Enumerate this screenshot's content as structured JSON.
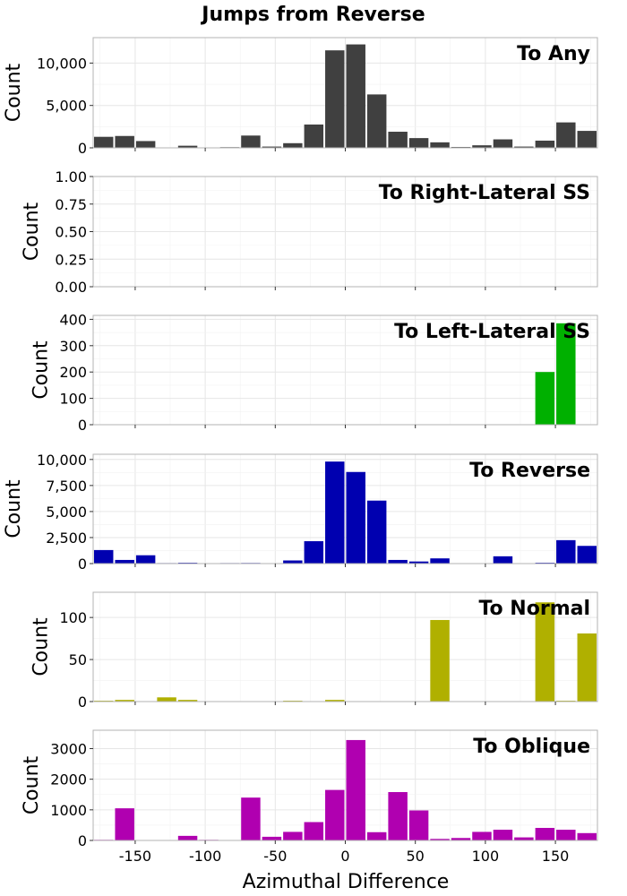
{
  "title": "Jumps from Reverse",
  "chart_data": {
    "type": "bar",
    "subtype": "histogram",
    "title": "Jumps from Reverse",
    "xlabel": "Azimuthal Difference",
    "xlim": [
      -180,
      180
    ],
    "xticks": [
      -150,
      -100,
      -50,
      0,
      50,
      100,
      150
    ],
    "xtick_labels": [
      "-150",
      "-100",
      "-50",
      "0",
      "50",
      "100",
      "150"
    ],
    "bin_centers": [
      -172.5,
      -157.5,
      -142.5,
      -127.5,
      -112.5,
      -97.5,
      -82.5,
      -67.5,
      -52.5,
      -37.5,
      -22.5,
      -7.5,
      7.5,
      22.5,
      37.5,
      52.5,
      67.5,
      82.5,
      97.5,
      112.5,
      127.5,
      142.5,
      157.5,
      172.5
    ],
    "grid": true,
    "panels": [
      {
        "name": "To Any",
        "ylabel": "Count",
        "color": "#404040",
        "ylim": [
          0,
          13000
        ],
        "yticks": [
          0,
          5000,
          10000
        ],
        "ytick_labels": [
          "0",
          "5,000",
          "10,000"
        ],
        "values": [
          1300,
          1400,
          800,
          50,
          250,
          30,
          80,
          1450,
          150,
          550,
          2750,
          11500,
          12200,
          6300,
          1900,
          1150,
          650,
          100,
          300,
          1000,
          150,
          850,
          3000,
          2000
        ]
      },
      {
        "name": "To Right-Lateral SS",
        "ylabel": "Count",
        "color": "#00b000",
        "ylim": [
          0,
          1
        ],
        "yticks": [
          0,
          0.25,
          0.5,
          0.75,
          1
        ],
        "ytick_labels": [
          "0.00",
          "0.25",
          "0.50",
          "0.75",
          "1.00"
        ],
        "values": [
          0,
          0,
          0,
          0,
          0,
          0,
          0,
          0,
          0,
          0,
          0,
          0,
          0,
          0,
          0,
          0,
          0,
          0,
          0,
          0,
          0,
          0,
          0,
          0
        ]
      },
      {
        "name": "To Left-Lateral SS",
        "ylabel": "Count",
        "color": "#00b000",
        "ylim": [
          0,
          415
        ],
        "yticks": [
          0,
          100,
          200,
          300,
          400
        ],
        "ytick_labels": [
          "0",
          "100",
          "200",
          "300",
          "400"
        ],
        "values": [
          0,
          0,
          0,
          0,
          0,
          0,
          0,
          0,
          0,
          0,
          0,
          0,
          0,
          0,
          0,
          0,
          0,
          0,
          0,
          0,
          0,
          200,
          385,
          0
        ]
      },
      {
        "name": "To Reverse",
        "ylabel": "Count",
        "color": "#0000b0",
        "ylim": [
          0,
          10500
        ],
        "yticks": [
          0,
          2500,
          5000,
          7500,
          10000
        ],
        "ytick_labels": [
          "0",
          "2,500",
          "5,000",
          "7,500",
          "10,000"
        ],
        "values": [
          1300,
          350,
          800,
          50,
          80,
          30,
          50,
          60,
          20,
          300,
          2150,
          9800,
          8800,
          6050,
          350,
          200,
          500,
          40,
          20,
          700,
          30,
          80,
          2250,
          1700
        ]
      },
      {
        "name": "To Normal",
        "ylabel": "Count",
        "color": "#b0b000",
        "ylim": [
          0,
          130
        ],
        "yticks": [
          0,
          50,
          100
        ],
        "ytick_labels": [
          "0",
          "50",
          "100"
        ],
        "values": [
          1,
          2,
          0,
          5,
          2,
          0,
          0,
          0,
          0,
          1,
          0,
          2,
          0,
          0,
          0,
          0,
          97,
          0,
          0,
          0,
          0,
          118,
          1,
          81
        ]
      },
      {
        "name": "To Oblique",
        "ylabel": "Count",
        "color": "#b000b0",
        "ylim": [
          0,
          3600
        ],
        "yticks": [
          0,
          1000,
          2000,
          3000
        ],
        "ytick_labels": [
          "0",
          "1000",
          "2000",
          "3000"
        ],
        "values": [
          20,
          1050,
          0,
          0,
          150,
          20,
          0,
          1400,
          120,
          280,
          600,
          1650,
          3280,
          270,
          1580,
          980,
          50,
          80,
          280,
          350,
          100,
          410,
          350,
          240
        ]
      }
    ]
  }
}
